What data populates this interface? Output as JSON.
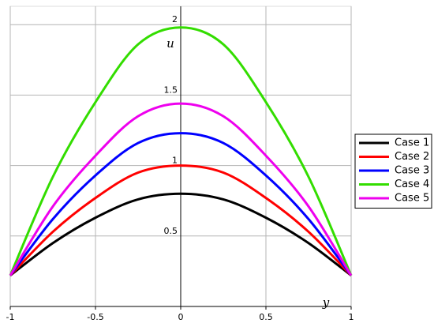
{
  "chart_data": {
    "type": "line",
    "x": [
      -1,
      -0.75,
      -0.5,
      -0.25,
      0,
      0.25,
      0.5,
      0.75,
      1
    ],
    "series": [
      {
        "name": "Case 1",
        "color": "#000000",
        "values": [
          0.22,
          0.45,
          0.63,
          0.76,
          0.8,
          0.76,
          0.63,
          0.45,
          0.22
        ]
      },
      {
        "name": "Case 2",
        "color": "#ff0000",
        "values": [
          0.22,
          0.53,
          0.77,
          0.95,
          1.0,
          0.95,
          0.77,
          0.53,
          0.22
        ]
      },
      {
        "name": "Case 3",
        "color": "#0000ff",
        "values": [
          0.22,
          0.62,
          0.93,
          1.16,
          1.23,
          1.16,
          0.93,
          0.62,
          0.22
        ]
      },
      {
        "name": "Case 4",
        "color": "#33dd00",
        "values": [
          0.22,
          0.92,
          1.45,
          1.86,
          1.98,
          1.86,
          1.45,
          0.92,
          0.22
        ]
      },
      {
        "name": "Case 5",
        "color": "#ee00ee",
        "values": [
          0.22,
          0.71,
          1.07,
          1.35,
          1.44,
          1.35,
          1.07,
          0.71,
          0.22
        ]
      }
    ],
    "x_label": "y",
    "y_label": "u",
    "xlim": [
      -1,
      1
    ],
    "ylim": [
      0,
      2.13
    ],
    "xticks": [
      -1,
      -0.5,
      0,
      0.5,
      1
    ],
    "yticks": [
      0.5,
      1,
      1.5,
      2
    ],
    "grid": true,
    "legend": "right"
  }
}
